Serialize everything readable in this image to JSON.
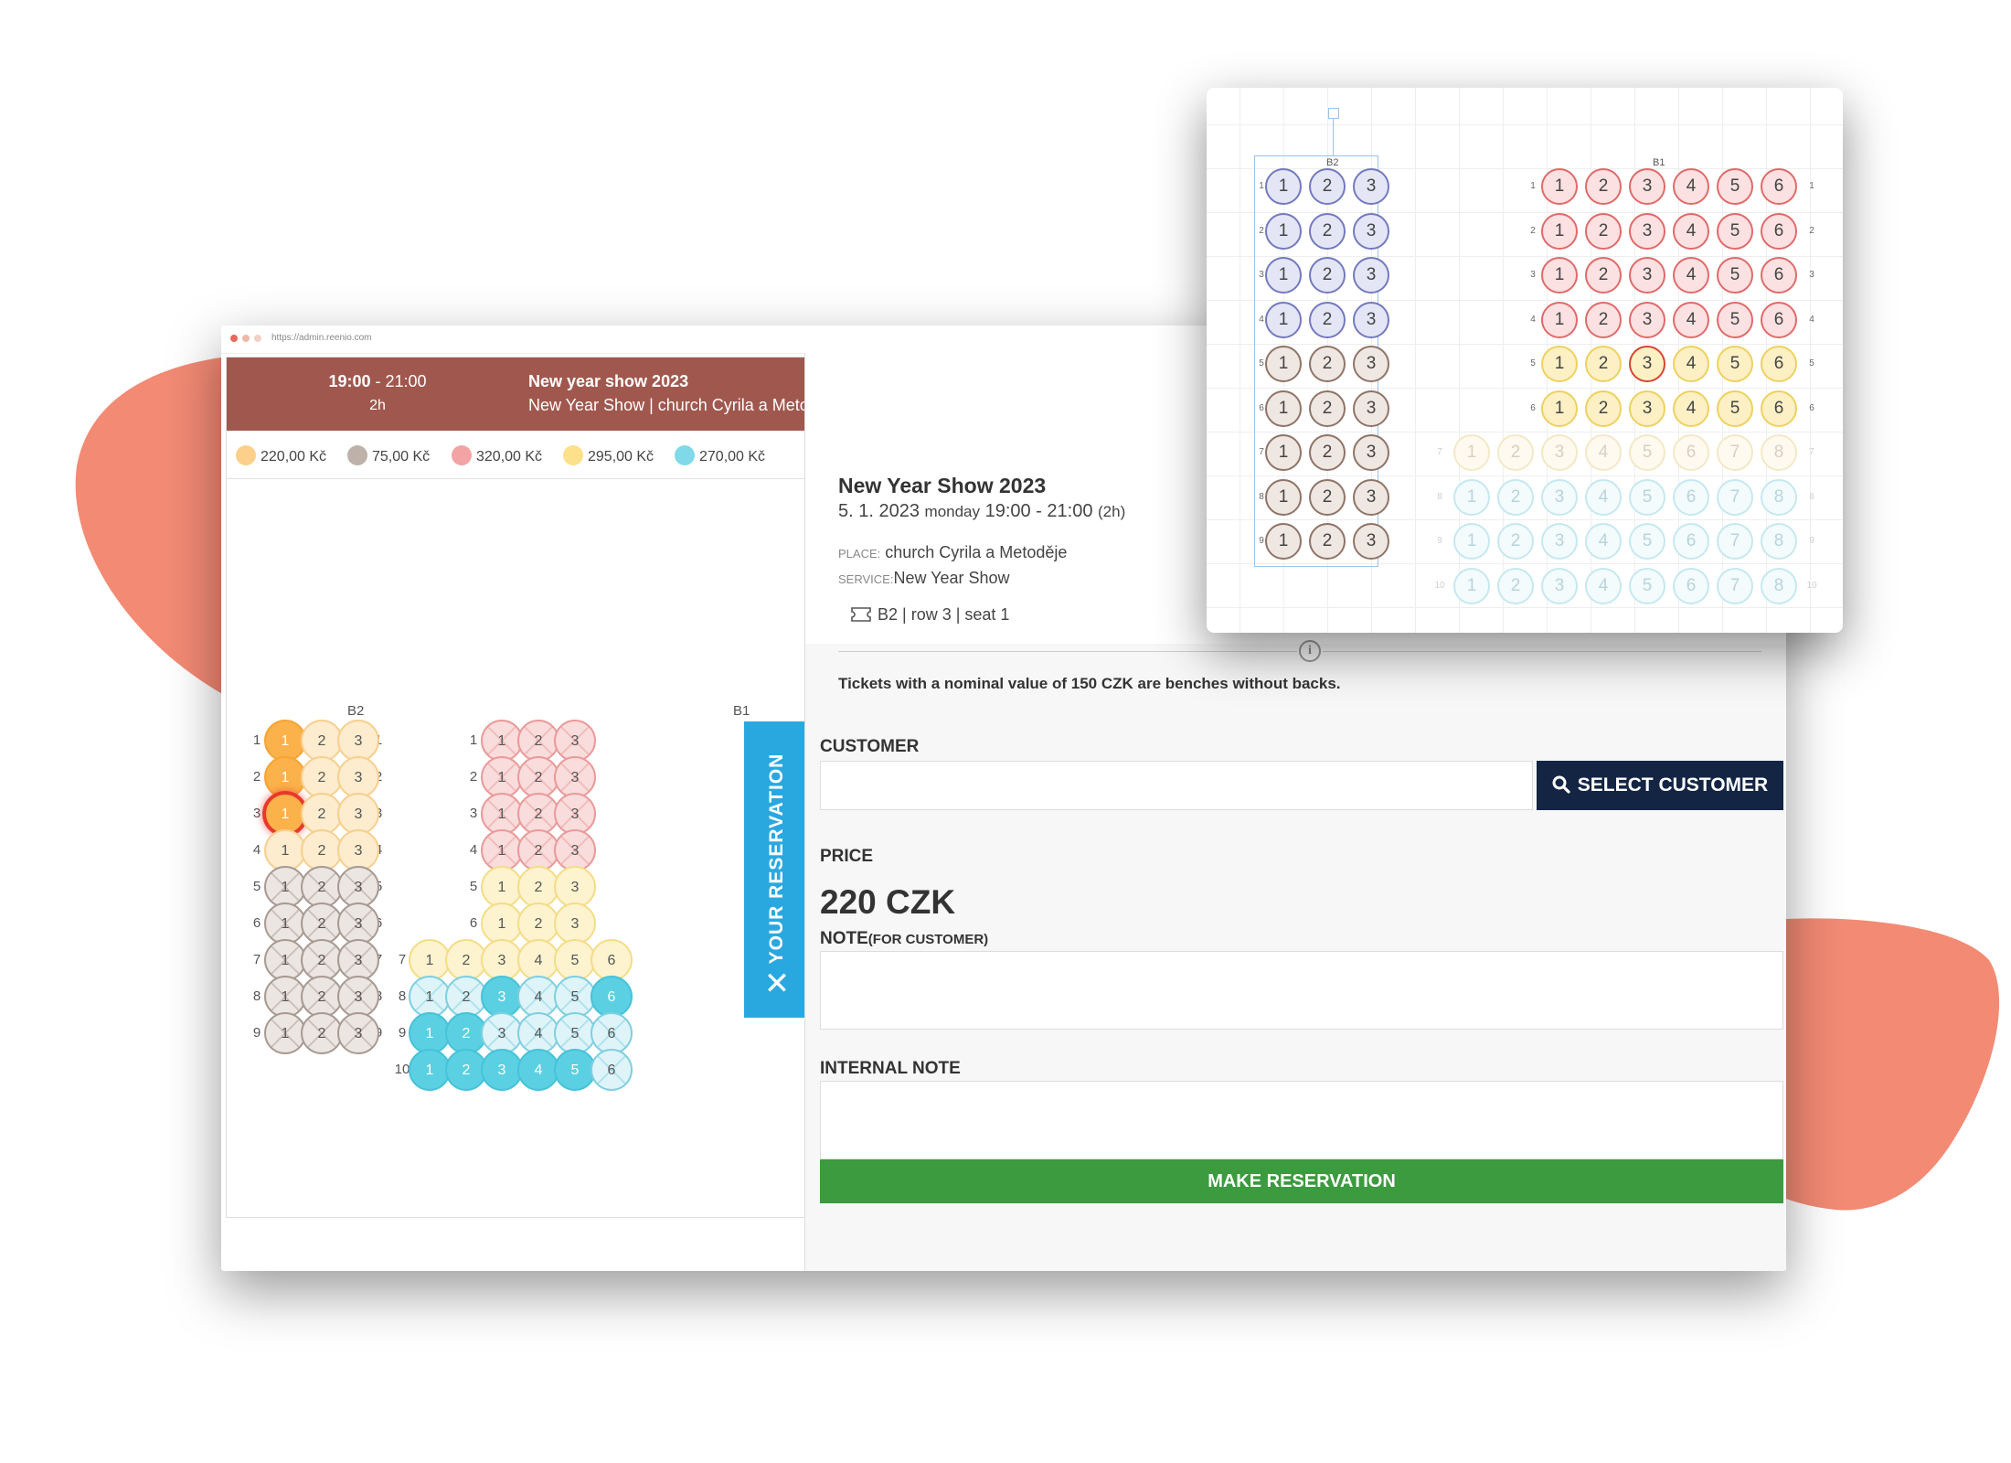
{
  "browser": {
    "url": "https://admin.reenio.com"
  },
  "event_header": {
    "time_start": "19:00",
    "time_rest": " - 21:00",
    "duration": "2h",
    "title": "New year show 2023",
    "subtitle": "New Year Show | church Cyrila a Metoděje"
  },
  "legend": [
    {
      "label": "220,00 Kč",
      "color": "#fcd08a"
    },
    {
      "label": "75,00 Kč",
      "color": "#bdb1aa"
    },
    {
      "label": "320,00 Kč",
      "color": "#f2a4a4"
    },
    {
      "label": "295,00 Kč",
      "color": "#fce08a"
    },
    {
      "label": "270,00 Kč",
      "color": "#7fd9e8"
    }
  ],
  "seat_map": {
    "block_labels": [
      "B2",
      "B1"
    ],
    "b2_rows": [
      "1",
      "2",
      "3",
      "4",
      "5",
      "6",
      "7",
      "8",
      "9"
    ],
    "b1_rows": [
      "1",
      "2",
      "3",
      "4",
      "5",
      "6",
      "7",
      "8",
      "9",
      "10"
    ]
  },
  "reservation_tab": {
    "label": "YOUR RESERVATION",
    "close_icon": "close-icon"
  },
  "details": {
    "title": "New Year Show 2023",
    "date": "5. 1. 2023",
    "weekday": "monday",
    "time": "19:00 - 21:00",
    "duration": "(2h)",
    "place_key": "PLACE:",
    "place_value": "church Cyrila a Metoděje",
    "service_key": "SERVICE:",
    "service_value": "New Year Show",
    "ticket_icon": "ticket-icon",
    "seat_info": "B2 | row 3 | seat 1",
    "notice": "Tickets with a nominal value of 150 CZK are benches without backs."
  },
  "form": {
    "customer_label": "CUSTOMER",
    "customer_value": "",
    "select_customer_button": "SELECT CUSTOMER",
    "price_label": "PRICE",
    "price_value": "220 CZK",
    "note_label": "NOTE",
    "note_hint": "(FOR CUSTOMER)",
    "internal_note_label": "INTERNAL NOTE",
    "make_reservation_button": "MAKE RESERVATION"
  },
  "zoom_panel": {
    "block_labels": [
      "B2",
      "B1"
    ]
  },
  "colors": {
    "header_bg": "#a0584e",
    "reservation_tab": "#29a8e0",
    "select_button": "#142544",
    "make_button": "#3c9a3f",
    "accent_blob": "#f28a74"
  }
}
